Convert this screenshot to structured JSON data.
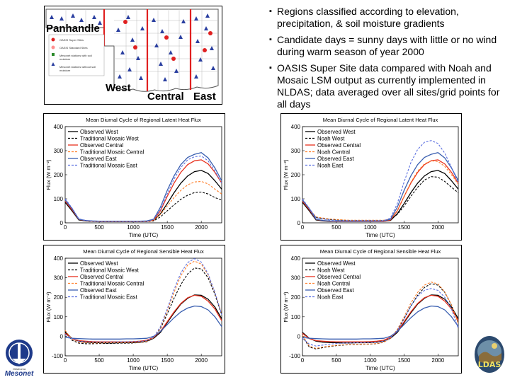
{
  "map": {
    "labels": {
      "panhandle": "Panhandle",
      "west": "West",
      "central": "Central",
      "east": "East"
    },
    "legend": [
      "OASIS Super Sites",
      "OASIS Standard Sites",
      "Mesonet stations with soil moisture",
      "Mesonet stations without soil moisture"
    ]
  },
  "bullets": [
    "Regions classified according to elevation, precipitation, & soil moisture gradients",
    "Candidate days = sunny days with little or no wind during warm season of year 2000",
    "OASIS Super Site data compared with Noah and Mosaic LSM output as currently implemented in NLDAS; data averaged over all sites/grid points for all days"
  ],
  "logos": {
    "mesonet": "Mesonet",
    "mesonet_small": "Oklahoma",
    "ldas": "LDAS"
  },
  "colors": {
    "west": "#000000",
    "central": "#e8311e",
    "east": "#3a5fb0",
    "central_model": "#ff7f2a",
    "east_model": "#5b6fe0"
  },
  "chart_data": [
    {
      "id": "lh-mosaic",
      "type": "line",
      "title": "Mean Diurnal Cycle of Regional Latent Heat Flux",
      "xlabel": "Time (UTC)",
      "ylabel": "Flux (W m⁻²)",
      "xlim": [
        0,
        2300
      ],
      "ylim": [
        0,
        400
      ],
      "xticks": [
        0,
        500,
        1000,
        1500,
        2000
      ],
      "yticks": [
        0,
        100,
        200,
        300,
        400
      ],
      "x": [
        0,
        100,
        200,
        300,
        400,
        500,
        600,
        700,
        800,
        900,
        1000,
        1100,
        1200,
        1300,
        1400,
        1500,
        1600,
        1700,
        1800,
        1900,
        2000,
        2100,
        2200,
        2300
      ],
      "series": [
        {
          "name": "Observed West",
          "color": "#000000",
          "dash": false,
          "values": [
            85,
            50,
            12,
            8,
            6,
            6,
            6,
            6,
            6,
            6,
            6,
            6,
            6,
            10,
            38,
            80,
            125,
            165,
            195,
            213,
            218,
            205,
            175,
            140
          ]
        },
        {
          "name": "Traditional Mosaic West",
          "color": "#000000",
          "dash": true,
          "values": [
            88,
            55,
            15,
            8,
            6,
            5,
            5,
            5,
            5,
            5,
            5,
            5,
            5,
            8,
            25,
            50,
            75,
            98,
            115,
            126,
            128,
            120,
            105,
            95
          ]
        },
        {
          "name": "Observed Central",
          "color": "#e8311e",
          "dash": false,
          "values": [
            90,
            55,
            14,
            9,
            7,
            6,
            6,
            6,
            6,
            6,
            6,
            6,
            6,
            12,
            50,
            110,
            165,
            210,
            242,
            258,
            262,
            245,
            210,
            165
          ]
        },
        {
          "name": "Traditional Mosaic Central",
          "color": "#ff7f2a",
          "dash": true,
          "values": [
            95,
            60,
            16,
            9,
            6,
            5,
            5,
            5,
            5,
            5,
            5,
            5,
            5,
            10,
            35,
            70,
            105,
            135,
            158,
            170,
            172,
            162,
            140,
            120
          ]
        },
        {
          "name": "Observed East",
          "color": "#3a5fb0",
          "dash": false,
          "values": [
            95,
            60,
            15,
            10,
            8,
            7,
            7,
            7,
            7,
            7,
            7,
            7,
            8,
            15,
            65,
            135,
            195,
            242,
            272,
            285,
            292,
            270,
            228,
            175
          ]
        },
        {
          "name": "Traditional Mosaic East",
          "color": "#5b6fe0",
          "dash": true,
          "values": [
            100,
            62,
            17,
            10,
            7,
            6,
            6,
            6,
            6,
            6,
            6,
            6,
            6,
            14,
            55,
            120,
            182,
            230,
            262,
            275,
            278,
            258,
            215,
            165
          ]
        }
      ]
    },
    {
      "id": "lh-noah",
      "type": "line",
      "title": "Mean Diurnal Cycle of Regional Latent Heat Flux",
      "xlabel": "Time (UTC)",
      "ylabel": "Flux (W m⁻²)",
      "xlim": [
        0,
        2300
      ],
      "ylim": [
        0,
        400
      ],
      "xticks": [
        0,
        500,
        1000,
        1500,
        2000
      ],
      "yticks": [
        0,
        100,
        200,
        300,
        400
      ],
      "x": [
        0,
        100,
        200,
        300,
        400,
        500,
        600,
        700,
        800,
        900,
        1000,
        1100,
        1200,
        1300,
        1400,
        1500,
        1600,
        1700,
        1800,
        1900,
        2000,
        2100,
        2200,
        2300
      ],
      "series": [
        {
          "name": "Observed West",
          "color": "#000000",
          "dash": false,
          "values": [
            85,
            50,
            12,
            8,
            6,
            6,
            6,
            6,
            6,
            6,
            6,
            6,
            6,
            10,
            38,
            80,
            125,
            165,
            195,
            213,
            218,
            205,
            175,
            140
          ]
        },
        {
          "name": "Noah West",
          "color": "#000000",
          "dash": true,
          "values": [
            90,
            55,
            22,
            18,
            14,
            12,
            11,
            10,
            10,
            10,
            10,
            10,
            10,
            14,
            35,
            70,
            110,
            148,
            178,
            192,
            190,
            172,
            148,
            125
          ]
        },
        {
          "name": "Observed Central",
          "color": "#e8311e",
          "dash": false,
          "values": [
            90,
            55,
            14,
            9,
            7,
            6,
            6,
            6,
            6,
            6,
            6,
            6,
            6,
            12,
            50,
            110,
            165,
            210,
            242,
            258,
            262,
            245,
            210,
            165
          ]
        },
        {
          "name": "Noah Central",
          "color": "#ff7f2a",
          "dash": true,
          "values": [
            95,
            58,
            25,
            20,
            16,
            14,
            12,
            11,
            11,
            11,
            11,
            11,
            11,
            16,
            50,
            110,
            168,
            215,
            245,
            258,
            255,
            235,
            200,
            160
          ]
        },
        {
          "name": "Observed East",
          "color": "#3a5fb0",
          "dash": false,
          "values": [
            95,
            60,
            15,
            10,
            8,
            7,
            7,
            7,
            7,
            7,
            7,
            7,
            8,
            15,
            65,
            135,
            195,
            242,
            272,
            285,
            292,
            270,
            228,
            175
          ]
        },
        {
          "name": "Noah East",
          "color": "#5b6fe0",
          "dash": true,
          "values": [
            100,
            60,
            22,
            16,
            12,
            10,
            9,
            9,
            9,
            9,
            9,
            9,
            9,
            20,
            80,
            170,
            250,
            305,
            335,
            342,
            330,
            290,
            230,
            165
          ]
        }
      ]
    },
    {
      "id": "sh-mosaic",
      "type": "line",
      "title": "Mean Diurnal Cycle of Regional Sensible Heat Flux",
      "xlabel": "Time (UTC)",
      "ylabel": "Flux (W m⁻²)",
      "xlim": [
        0,
        2300
      ],
      "ylim": [
        -100,
        400
      ],
      "xticks": [
        0,
        500,
        1000,
        1500,
        2000
      ],
      "yticks": [
        -100,
        0,
        100,
        200,
        300,
        400
      ],
      "x": [
        0,
        100,
        200,
        300,
        400,
        500,
        600,
        700,
        800,
        900,
        1000,
        1100,
        1200,
        1300,
        1400,
        1500,
        1600,
        1700,
        1800,
        1900,
        2000,
        2100,
        2200,
        2300
      ],
      "series": [
        {
          "name": "Observed West",
          "color": "#000000",
          "dash": false,
          "values": [
            20,
            -10,
            -25,
            -30,
            -32,
            -33,
            -34,
            -34,
            -33,
            -33,
            -32,
            -30,
            -25,
            -10,
            20,
            70,
            120,
            165,
            195,
            212,
            210,
            190,
            150,
            90
          ]
        },
        {
          "name": "Traditional Mosaic West",
          "color": "#000000",
          "dash": true,
          "values": [
            25,
            -20,
            -35,
            -38,
            -38,
            -37,
            -37,
            -36,
            -35,
            -35,
            -34,
            -32,
            -28,
            -10,
            40,
            115,
            195,
            265,
            320,
            350,
            345,
            300,
            215,
            110
          ]
        },
        {
          "name": "Observed Central",
          "color": "#e8311e",
          "dash": false,
          "values": [
            15,
            -12,
            -22,
            -25,
            -27,
            -28,
            -28,
            -28,
            -28,
            -28,
            -27,
            -25,
            -20,
            -5,
            25,
            75,
            125,
            168,
            198,
            210,
            205,
            180,
            140,
            80
          ]
        },
        {
          "name": "Traditional Mosaic Central",
          "color": "#ff7f2a",
          "dash": true,
          "values": [
            30,
            -15,
            -30,
            -33,
            -34,
            -34,
            -33,
            -33,
            -32,
            -32,
            -31,
            -30,
            -26,
            -8,
            45,
            130,
            225,
            310,
            365,
            385,
            370,
            315,
            225,
            115
          ]
        },
        {
          "name": "Observed East",
          "color": "#3a5fb0",
          "dash": false,
          "values": [
            -5,
            -10,
            -12,
            -13,
            -14,
            -14,
            -14,
            -14,
            -14,
            -13,
            -13,
            -12,
            -10,
            0,
            25,
            60,
            95,
            125,
            145,
            155,
            152,
            135,
            100,
            50
          ]
        },
        {
          "name": "Traditional Mosaic East",
          "color": "#5b6fe0",
          "dash": true,
          "values": [
            10,
            -12,
            -25,
            -28,
            -29,
            -29,
            -29,
            -29,
            -28,
            -28,
            -27,
            -26,
            -22,
            -5,
            50,
            140,
            240,
            325,
            378,
            398,
            380,
            320,
            225,
            110
          ]
        }
      ]
    },
    {
      "id": "sh-noah",
      "type": "line",
      "title": "Mean Diurnal Cycle of Regional Sensible Heat Flux",
      "xlabel": "Time (UTC)",
      "ylabel": "Flux (W m⁻²)",
      "xlim": [
        0,
        2300
      ],
      "ylim": [
        -100,
        400
      ],
      "xticks": [
        0,
        500,
        1000,
        1500,
        2000
      ],
      "yticks": [
        -100,
        0,
        100,
        200,
        300,
        400
      ],
      "x": [
        0,
        100,
        200,
        300,
        400,
        500,
        600,
        700,
        800,
        900,
        1000,
        1100,
        1200,
        1300,
        1400,
        1500,
        1600,
        1700,
        1800,
        1900,
        2000,
        2100,
        2200,
        2300
      ],
      "series": [
        {
          "name": "Observed West",
          "color": "#000000",
          "dash": false,
          "values": [
            20,
            -10,
            -25,
            -30,
            -32,
            -33,
            -34,
            -34,
            -33,
            -33,
            -32,
            -30,
            -25,
            -10,
            20,
            70,
            120,
            165,
            195,
            212,
            210,
            190,
            150,
            90
          ]
        },
        {
          "name": "Noah West",
          "color": "#000000",
          "dash": true,
          "values": [
            0,
            -55,
            -65,
            -58,
            -52,
            -48,
            -45,
            -43,
            -42,
            -41,
            -40,
            -38,
            -30,
            -10,
            30,
            90,
            155,
            210,
            250,
            270,
            262,
            225,
            160,
            70
          ]
        },
        {
          "name": "Observed Central",
          "color": "#e8311e",
          "dash": false,
          "values": [
            15,
            -12,
            -22,
            -25,
            -27,
            -28,
            -28,
            -28,
            -28,
            -28,
            -27,
            -25,
            -20,
            -5,
            25,
            75,
            125,
            168,
            198,
            210,
            205,
            180,
            140,
            80
          ]
        },
        {
          "name": "Noah Central",
          "color": "#ff7f2a",
          "dash": true,
          "values": [
            5,
            -50,
            -62,
            -55,
            -50,
            -46,
            -44,
            -42,
            -41,
            -40,
            -39,
            -37,
            -30,
            -10,
            35,
            100,
            170,
            225,
            262,
            278,
            268,
            228,
            160,
            65
          ]
        },
        {
          "name": "Observed East",
          "color": "#3a5fb0",
          "dash": false,
          "values": [
            -5,
            -10,
            -12,
            -13,
            -14,
            -14,
            -14,
            -14,
            -14,
            -13,
            -13,
            -12,
            -10,
            0,
            25,
            60,
            95,
            125,
            145,
            155,
            152,
            135,
            100,
            50
          ]
        },
        {
          "name": "Noah East",
          "color": "#5b6fe0",
          "dash": true,
          "values": [
            -10,
            -40,
            -50,
            -45,
            -40,
            -37,
            -35,
            -34,
            -33,
            -33,
            -32,
            -30,
            -25,
            -8,
            30,
            90,
            155,
            205,
            235,
            245,
            235,
            200,
            140,
            40
          ]
        }
      ]
    }
  ]
}
